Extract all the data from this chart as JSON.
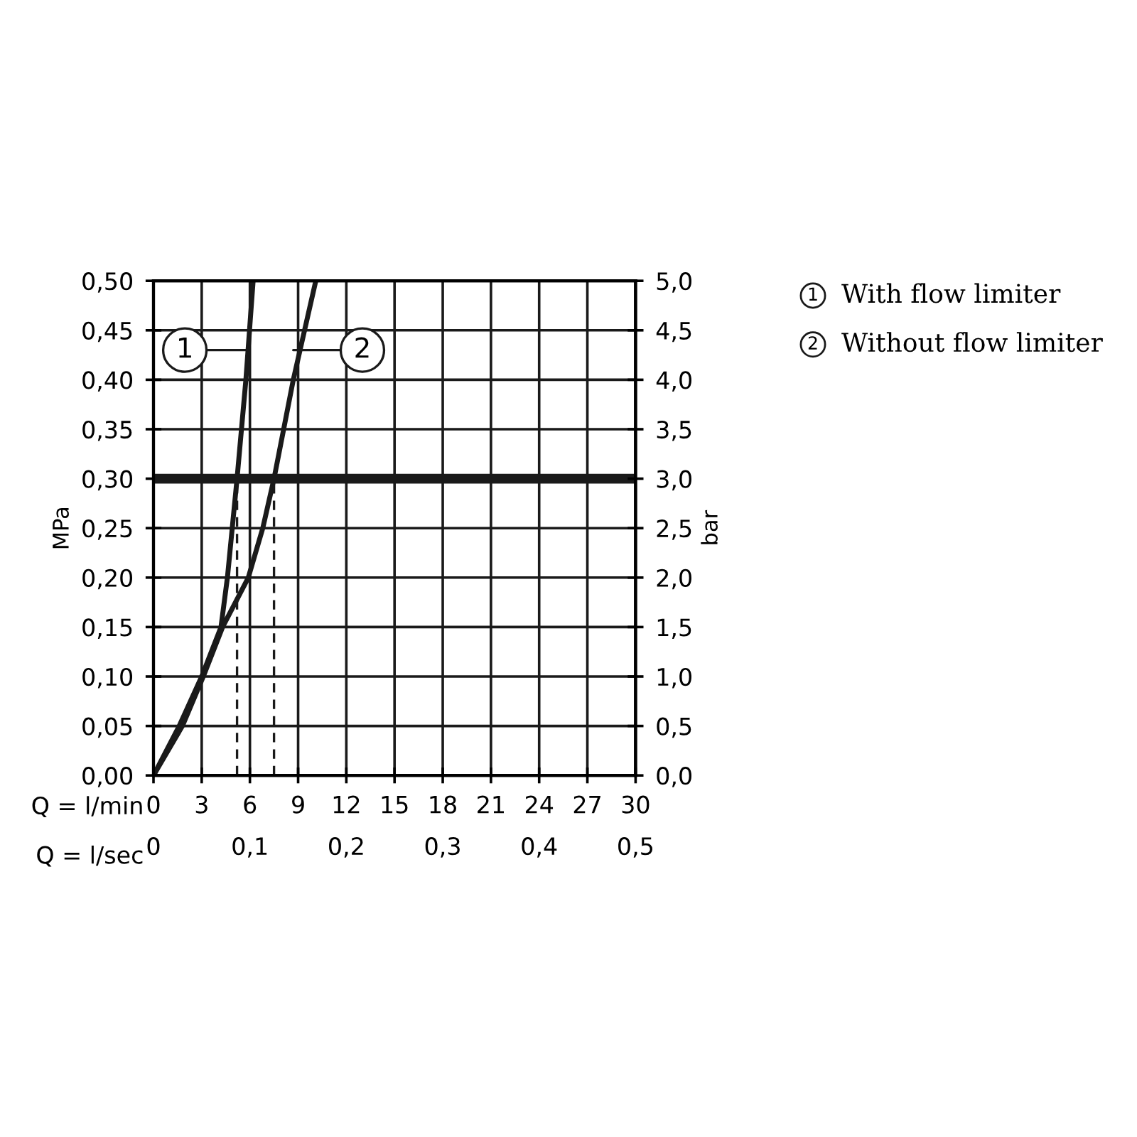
{
  "chart_data": {
    "type": "line",
    "xlabel": "Q = l/min",
    "ylabel": "MPa",
    "y2label": "bar",
    "x2label": "Q = l/sec",
    "xlim": [
      0,
      30
    ],
    "xticks": [
      0,
      3,
      6,
      9,
      12,
      15,
      18,
      21,
      24,
      27,
      30
    ],
    "ylim": [
      0,
      0.5
    ],
    "yticks": [
      {
        "value": 0,
        "label": "0,00"
      },
      {
        "value": 0.05,
        "label": "0,05"
      },
      {
        "value": 0.1,
        "label": "0,10"
      },
      {
        "value": 0.15,
        "label": "0,15"
      },
      {
        "value": 0.2,
        "label": "0,20"
      },
      {
        "value": 0.25,
        "label": "0,25"
      },
      {
        "value": 0.3,
        "label": "0,30"
      },
      {
        "value": 0.35,
        "label": "0,35"
      },
      {
        "value": 0.4,
        "label": "0,40"
      },
      {
        "value": 0.45,
        "label": "0,45"
      },
      {
        "value": 0.5,
        "label": "0,50"
      }
    ],
    "y2lim": [
      0,
      5
    ],
    "y2ticks": [
      {
        "value": 0,
        "label": "0,0"
      },
      {
        "value": 0.5,
        "label": "0,5"
      },
      {
        "value": 1,
        "label": "1,0"
      },
      {
        "value": 1.5,
        "label": "1,5"
      },
      {
        "value": 2,
        "label": "2,0"
      },
      {
        "value": 2.5,
        "label": "2,5"
      },
      {
        "value": 3,
        "label": "3,0"
      },
      {
        "value": 3.5,
        "label": "3,5"
      },
      {
        "value": 4,
        "label": "4,0"
      },
      {
        "value": 4.5,
        "label": "4,5"
      },
      {
        "value": 5,
        "label": "5,0"
      }
    ],
    "x2lim": [
      0,
      0.5
    ],
    "x2ticks": [
      0,
      {
        "value": 0.1,
        "label": "0,1"
      },
      {
        "value": 0.2,
        "label": "0,2"
      },
      {
        "value": 0.3,
        "label": "0,3"
      },
      {
        "value": 0.4,
        "label": "0,4"
      },
      {
        "value": 0.5,
        "label": "0,5"
      }
    ],
    "grid": true,
    "series": [
      {
        "name": "1",
        "color": "#1a1a1a",
        "x": [
          0,
          1.6,
          3.0,
          4.2,
          4.6,
          4.9,
          5.2,
          5.75,
          6.2
        ],
        "values": [
          0,
          0.05,
          0.1,
          0.15,
          0.2,
          0.25,
          0.3,
          0.4,
          0.5
        ]
      },
      {
        "name": "2",
        "color": "#1a1a1a",
        "x": [
          0,
          1.8,
          3.1,
          4.3,
          5.9,
          6.8,
          7.5,
          8.7,
          10.1
        ],
        "values": [
          0,
          0.05,
          0.1,
          0.15,
          0.2,
          0.25,
          0.3,
          0.4,
          0.5
        ]
      },
      {
        "color": "#1a1a1a",
        "line_style": "dashed",
        "x": [
          5.2,
          5.2
        ],
        "values": [
          0,
          0.3
        ]
      },
      {
        "color": "#1a1a1a",
        "line_style": "dashed",
        "x": [
          7.5,
          7.5
        ],
        "values": [
          0,
          0.3
        ]
      }
    ],
    "ref_lines": [
      {
        "axis": "y",
        "value": 0.3,
        "color": "#1a1a1a"
      }
    ],
    "annotations": [
      "With flow limiter",
      "Without flow limiter"
    ]
  }
}
